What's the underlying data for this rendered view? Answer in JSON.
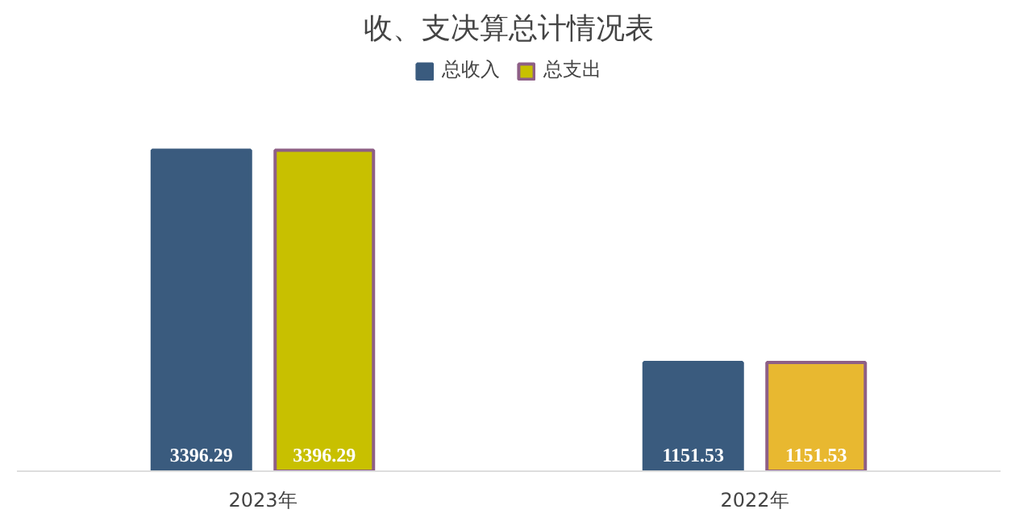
{
  "chart_data": {
    "type": "bar",
    "title": "收、支决算总计情况表",
    "categories": [
      "2023年",
      "2022年"
    ],
    "series": [
      {
        "name": "总收入",
        "color": "#3a5b7e",
        "values": [
          3396.29,
          1151.53
        ]
      },
      {
        "name": "总支出",
        "color": "#8e5f86",
        "colors": [
          "#c8c000",
          "#e8b830"
        ],
        "values": [
          3396.29,
          1151.53
        ]
      }
    ],
    "data_labels": true,
    "legend": "top"
  }
}
